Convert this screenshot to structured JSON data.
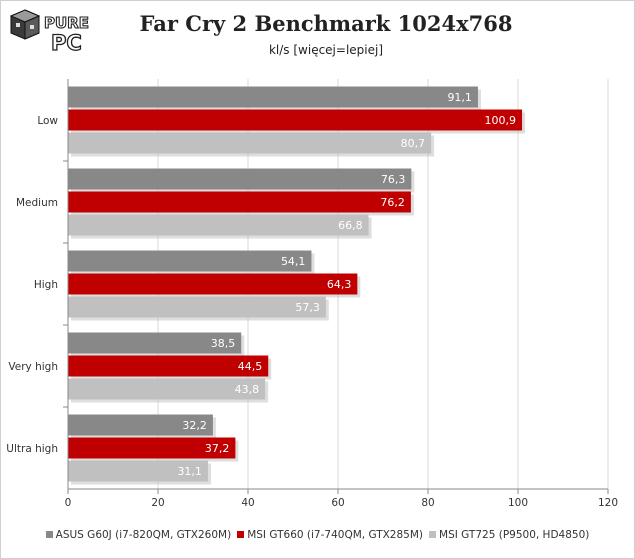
{
  "logo": {
    "word_top": "PURE",
    "word_bottom": "PC"
  },
  "chart_data": {
    "type": "bar",
    "orientation": "horizontal",
    "title": "Far Cry 2 Benchmark 1024x768",
    "subtitle": "kl/s [więcej=lepiej]",
    "categories": [
      "Low",
      "Medium",
      "High",
      "Very high",
      "Ultra high"
    ],
    "series": [
      {
        "name": "ASUS G60J (i7-820QM, GTX260M)",
        "color": "#888888",
        "values": [
          91.1,
          76.3,
          54.1,
          38.5,
          32.2
        ],
        "labels": [
          "91,1",
          "76,3",
          "54,1",
          "38,5",
          "32,2"
        ]
      },
      {
        "name": "MSI GT660 (i7-740QM, GTX285M)",
        "color": "#c00000",
        "values": [
          100.9,
          76.2,
          64.3,
          44.5,
          37.2
        ],
        "labels": [
          "100,9",
          "76,2",
          "64,3",
          "44,5",
          "37,2"
        ]
      },
      {
        "name": "MSI GT725 (P9500, HD4850)",
        "color": "#c0c0c0",
        "values": [
          80.7,
          66.8,
          57.3,
          43.8,
          31.1
        ],
        "labels": [
          "80,7",
          "66,8",
          "57,3",
          "43,8",
          "31,1"
        ]
      }
    ],
    "xlim": [
      0,
      120
    ],
    "x_ticks": [
      0,
      20,
      40,
      60,
      80,
      100,
      120
    ],
    "grid": "vertical",
    "legend_position": "bottom"
  }
}
